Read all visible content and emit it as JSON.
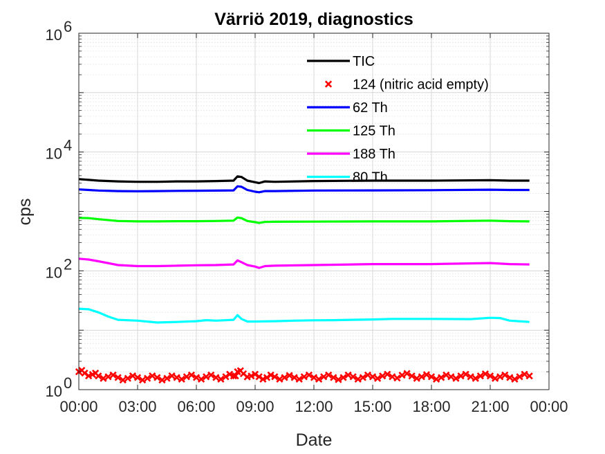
{
  "chart_data": {
    "type": "line",
    "title": "Värriö 2019, diagnostics",
    "xlabel": "Date",
    "ylabel": "cps",
    "y_scale": "log",
    "ylim": [
      1,
      1000000
    ],
    "xlim_hours": [
      0,
      24
    ],
    "x_tick_labels": [
      "00:00",
      "03:00",
      "06:00",
      "09:00",
      "12:00",
      "15:00",
      "18:00",
      "21:00",
      "00:00"
    ],
    "y_ticks": [
      {
        "base": "10",
        "exp": "0"
      },
      {
        "base": "10",
        "exp": "2"
      },
      {
        "base": "10",
        "exp": "4"
      },
      {
        "base": "10",
        "exp": "6"
      }
    ],
    "grid": true,
    "minor_grid": true,
    "legend_position": "top-right",
    "series": [
      {
        "name": "TIC",
        "color": "#000000",
        "marker": "line",
        "points": [
          [
            0.0,
            3500
          ],
          [
            0.5,
            3400
          ],
          [
            1.0,
            3300
          ],
          [
            2.0,
            3200
          ],
          [
            3.0,
            3150
          ],
          [
            4.0,
            3150
          ],
          [
            5.0,
            3200
          ],
          [
            6.0,
            3200
          ],
          [
            7.0,
            3250
          ],
          [
            7.9,
            3300
          ],
          [
            8.1,
            3900
          ],
          [
            8.3,
            3800
          ],
          [
            8.6,
            3300
          ],
          [
            9.0,
            3100
          ],
          [
            9.2,
            3000
          ],
          [
            9.5,
            3200
          ],
          [
            10.0,
            3150
          ],
          [
            12.0,
            3250
          ],
          [
            15.0,
            3300
          ],
          [
            18.0,
            3300
          ],
          [
            21.0,
            3350
          ],
          [
            22.0,
            3300
          ],
          [
            23.0,
            3300
          ]
        ]
      },
      {
        "name": "124 (nitric acid empty)",
        "color": "#ff0000",
        "marker": "x",
        "points": [
          [
            0.0,
            2.0
          ],
          [
            0.3,
            1.9
          ],
          [
            0.7,
            1.8
          ],
          [
            1.0,
            1.7
          ],
          [
            1.5,
            1.65
          ],
          [
            2.0,
            1.6
          ],
          [
            2.5,
            1.55
          ],
          [
            3.0,
            1.6
          ],
          [
            3.5,
            1.55
          ],
          [
            4.0,
            1.6
          ],
          [
            4.5,
            1.55
          ],
          [
            5.0,
            1.6
          ],
          [
            5.5,
            1.65
          ],
          [
            6.0,
            1.6
          ],
          [
            6.5,
            1.65
          ],
          [
            7.0,
            1.6
          ],
          [
            7.5,
            1.65
          ],
          [
            7.9,
            1.7
          ],
          [
            8.1,
            2.0
          ],
          [
            8.4,
            1.85
          ],
          [
            8.8,
            1.7
          ],
          [
            9.2,
            1.65
          ],
          [
            9.6,
            1.6
          ],
          [
            10.0,
            1.65
          ],
          [
            10.5,
            1.6
          ],
          [
            11.0,
            1.6
          ],
          [
            11.5,
            1.65
          ],
          [
            12.0,
            1.6
          ],
          [
            12.5,
            1.65
          ],
          [
            13.0,
            1.6
          ],
          [
            13.5,
            1.6
          ],
          [
            14.0,
            1.65
          ],
          [
            14.5,
            1.6
          ],
          [
            15.0,
            1.65
          ],
          [
            15.5,
            1.7
          ],
          [
            16.0,
            1.65
          ],
          [
            16.5,
            1.75
          ],
          [
            17.0,
            1.7
          ],
          [
            17.5,
            1.65
          ],
          [
            18.0,
            1.65
          ],
          [
            18.5,
            1.6
          ],
          [
            19.0,
            1.65
          ],
          [
            19.5,
            1.7
          ],
          [
            20.0,
            1.65
          ],
          [
            20.5,
            1.7
          ],
          [
            21.0,
            1.7
          ],
          [
            21.5,
            1.65
          ],
          [
            22.0,
            1.6
          ],
          [
            22.5,
            1.65
          ],
          [
            23.0,
            1.7
          ]
        ]
      },
      {
        "name": "62 Th",
        "color": "#0000ff",
        "marker": "line",
        "points": [
          [
            0.0,
            2350
          ],
          [
            0.5,
            2300
          ],
          [
            1.0,
            2250
          ],
          [
            2.0,
            2200
          ],
          [
            3.0,
            2180
          ],
          [
            4.0,
            2200
          ],
          [
            5.0,
            2220
          ],
          [
            6.0,
            2230
          ],
          [
            7.0,
            2240
          ],
          [
            7.9,
            2260
          ],
          [
            8.1,
            2650
          ],
          [
            8.3,
            2600
          ],
          [
            8.6,
            2300
          ],
          [
            9.0,
            2150
          ],
          [
            9.2,
            2100
          ],
          [
            9.5,
            2200
          ],
          [
            10.0,
            2200
          ],
          [
            12.0,
            2250
          ],
          [
            15.0,
            2260
          ],
          [
            18.0,
            2280
          ],
          [
            21.0,
            2320
          ],
          [
            22.0,
            2300
          ],
          [
            23.0,
            2300
          ]
        ]
      },
      {
        "name": "125 Th",
        "color": "#00ff00",
        "marker": "line",
        "points": [
          [
            0.0,
            780
          ],
          [
            0.5,
            770
          ],
          [
            1.0,
            740
          ],
          [
            2.0,
            690
          ],
          [
            3.0,
            680
          ],
          [
            4.0,
            680
          ],
          [
            5.0,
            685
          ],
          [
            6.0,
            685
          ],
          [
            7.0,
            690
          ],
          [
            7.9,
            700
          ],
          [
            8.1,
            790
          ],
          [
            8.3,
            770
          ],
          [
            8.6,
            690
          ],
          [
            9.0,
            660
          ],
          [
            9.2,
            640
          ],
          [
            9.5,
            665
          ],
          [
            10.0,
            670
          ],
          [
            12.0,
            675
          ],
          [
            15.0,
            680
          ],
          [
            18.0,
            680
          ],
          [
            21.0,
            700
          ],
          [
            22.0,
            685
          ],
          [
            23.0,
            680
          ]
        ]
      },
      {
        "name": "188 Th",
        "color": "#ff00ff",
        "marker": "line",
        "points": [
          [
            0.0,
            160
          ],
          [
            0.5,
            155
          ],
          [
            1.0,
            145
          ],
          [
            2.0,
            125
          ],
          [
            3.0,
            120
          ],
          [
            4.0,
            120
          ],
          [
            5.0,
            122
          ],
          [
            6.0,
            124
          ],
          [
            7.0,
            125
          ],
          [
            7.9,
            128
          ],
          [
            8.1,
            150
          ],
          [
            8.3,
            140
          ],
          [
            8.6,
            125
          ],
          [
            9.0,
            118
          ],
          [
            9.2,
            112
          ],
          [
            9.5,
            120
          ],
          [
            10.0,
            122
          ],
          [
            12.0,
            125
          ],
          [
            15.0,
            130
          ],
          [
            18.0,
            130
          ],
          [
            21.0,
            135
          ],
          [
            22.0,
            130
          ],
          [
            23.0,
            128
          ]
        ]
      },
      {
        "name": "80 Th",
        "color": "#00ffff",
        "marker": "line",
        "points": [
          [
            0.0,
            23
          ],
          [
            0.5,
            22.5
          ],
          [
            1.0,
            20
          ],
          [
            1.5,
            17
          ],
          [
            2.0,
            15
          ],
          [
            3.0,
            14.5
          ],
          [
            4.0,
            13.5
          ],
          [
            5.0,
            13.8
          ],
          [
            6.0,
            14.2
          ],
          [
            6.5,
            14.8
          ],
          [
            7.0,
            14.5
          ],
          [
            7.9,
            15
          ],
          [
            8.1,
            18
          ],
          [
            8.3,
            15.5
          ],
          [
            8.6,
            14
          ],
          [
            9.0,
            14
          ],
          [
            10.0,
            14.2
          ],
          [
            11.0,
            14.5
          ],
          [
            12.0,
            14.7
          ],
          [
            13.0,
            14.8
          ],
          [
            15.0,
            15.2
          ],
          [
            16.0,
            15.5
          ],
          [
            18.0,
            15.5
          ],
          [
            20.0,
            15.4
          ],
          [
            21.0,
            16.2
          ],
          [
            21.5,
            16.0
          ],
          [
            22.0,
            14.5
          ],
          [
            23.0,
            13.8
          ]
        ]
      }
    ]
  }
}
